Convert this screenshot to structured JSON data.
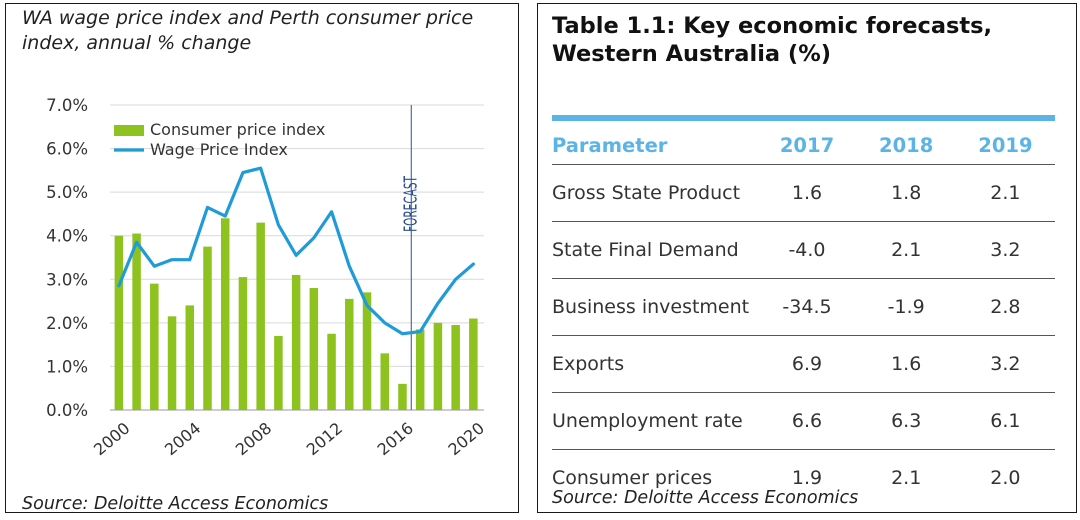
{
  "left_panel": {
    "title": "WA wage price index and Perth consumer price index, annual % change",
    "source": "Source: Deloitte Access Economics"
  },
  "chart_data": {
    "type": "bar+line",
    "title": "WA wage price index and Perth consumer price index, annual % change",
    "ylim": [
      0,
      7
    ],
    "y_ticks": [
      "0.0%",
      "1.0%",
      "2.0%",
      "3.0%",
      "4.0%",
      "5.0%",
      "6.0%",
      "7.0%"
    ],
    "x_ticks": [
      "2000",
      "2004",
      "2008",
      "2012",
      "2016",
      "2020"
    ],
    "x": [
      2000,
      2001,
      2002,
      2003,
      2004,
      2005,
      2006,
      2007,
      2008,
      2009,
      2010,
      2011,
      2012,
      2013,
      2014,
      2015,
      2016,
      2017,
      2018,
      2019,
      2020
    ],
    "series": [
      {
        "name": "Consumer price index",
        "kind": "bar",
        "color": "#8dc21f",
        "values": [
          4.0,
          4.05,
          2.9,
          2.15,
          2.4,
          3.75,
          4.4,
          3.05,
          4.3,
          1.7,
          3.1,
          2.8,
          1.75,
          2.55,
          2.7,
          1.3,
          0.6,
          1.85,
          2.0,
          1.95,
          2.1
        ]
      },
      {
        "name": "Wage Price Index",
        "kind": "line",
        "color": "#1f9bd7",
        "values": [
          2.85,
          3.85,
          3.3,
          3.45,
          3.45,
          4.65,
          4.45,
          5.45,
          5.55,
          4.25,
          3.55,
          3.95,
          4.55,
          3.3,
          2.4,
          2.0,
          1.75,
          1.8,
          2.45,
          3.0,
          3.35
        ]
      }
    ],
    "legend": {
      "position": "top-left",
      "labels": [
        "Consumer price index",
        "Wage Price Index"
      ]
    },
    "annotation": {
      "text": "FORECAST",
      "x": 2016.5
    }
  },
  "right_panel": {
    "title": "Table 1.1: Key economic forecasts, Western Australia (%)",
    "source": "Source: Deloitte Access Economics",
    "columns": [
      "Parameter",
      "2017",
      "2018",
      "2019"
    ],
    "rows": [
      {
        "parameter": "Gross State Product",
        "y2017": "1.6",
        "y2018": "1.8",
        "y2019": "2.1"
      },
      {
        "parameter": "State Final Demand",
        "y2017": "-4.0",
        "y2018": "2.1",
        "y2019": "3.2"
      },
      {
        "parameter": "Business investment",
        "y2017": "-34.5",
        "y2018": "-1.9",
        "y2019": "2.8"
      },
      {
        "parameter": "Exports",
        "y2017": "6.9",
        "y2018": "1.6",
        "y2019": "3.2"
      },
      {
        "parameter": "Unemployment rate",
        "y2017": "6.6",
        "y2018": "6.3",
        "y2019": "6.1"
      },
      {
        "parameter": "Consumer prices",
        "y2017": "1.9",
        "y2018": "2.1",
        "y2019": "2.0"
      }
    ],
    "accent_color": "#5bb4e5"
  }
}
